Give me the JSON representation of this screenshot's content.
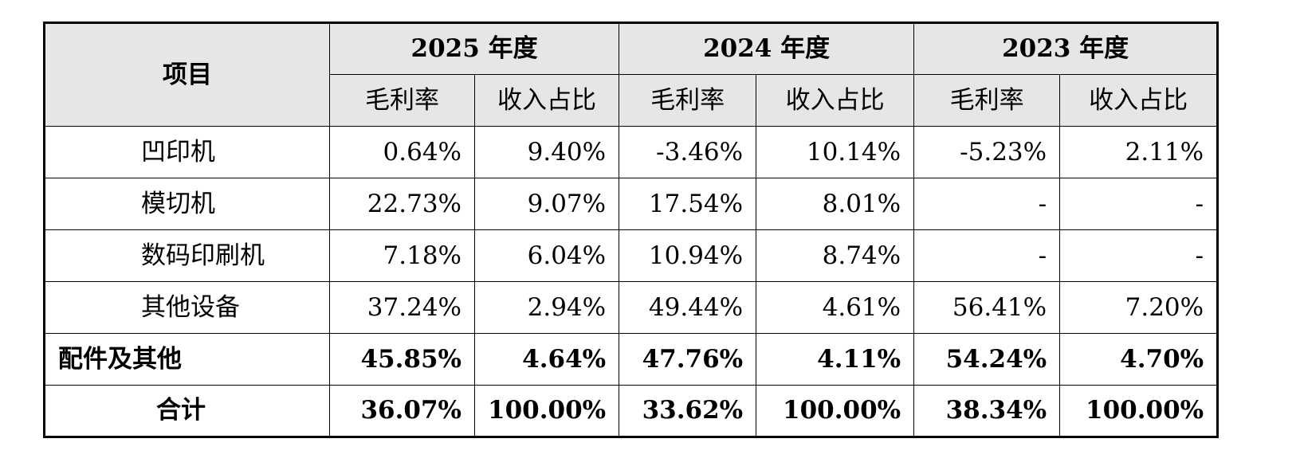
{
  "table": {
    "item_header": "项目",
    "years": [
      "2025 年度",
      "2024 年度",
      "2023 年度"
    ],
    "sub_headers": [
      "毛利率",
      "收入占比",
      "毛利率",
      "收入占比",
      "毛利率",
      "收入占比"
    ],
    "rows": [
      {
        "label": "凹印机",
        "values": [
          "0.64%",
          "9.40%",
          "-3.46%",
          "10.14%",
          "-5.23%",
          "2.11%"
        ]
      },
      {
        "label": "模切机",
        "values": [
          "22.73%",
          "9.07%",
          "17.54%",
          "8.01%",
          "-",
          "-"
        ]
      },
      {
        "label": "数码印刷机",
        "values": [
          "7.18%",
          "6.04%",
          "10.94%",
          "8.74%",
          "-",
          "-"
        ]
      },
      {
        "label": "其他设备",
        "values": [
          "37.24%",
          "2.94%",
          "49.44%",
          "4.61%",
          "56.41%",
          "7.20%"
        ]
      },
      {
        "label": "配件及其他",
        "values": [
          "45.85%",
          "4.64%",
          "47.76%",
          "4.11%",
          "54.24%",
          "4.70%"
        ]
      },
      {
        "label": "合计",
        "values": [
          "36.07%",
          "100.00%",
          "33.62%",
          "100.00%",
          "38.34%",
          "100.00%"
        ]
      }
    ]
  }
}
